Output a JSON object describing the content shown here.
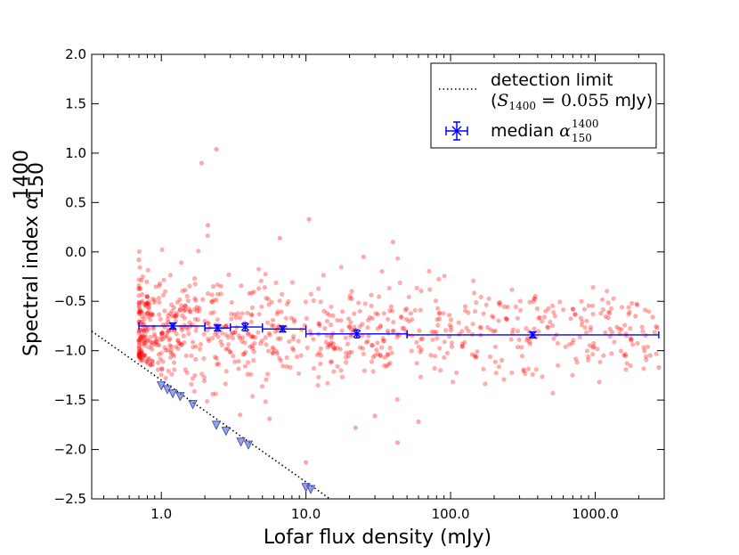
{
  "chart_data": {
    "type": "scatter",
    "xscale": "log",
    "xlabel": "Lofar flux density (mJy)",
    "ylabel": "Spectral index",
    "ylabel_symbol": "α",
    "ylabel_sup": "1400",
    "ylabel_sub": "150",
    "xlim": [
      0.33,
      3000
    ],
    "ylim": [
      -2.5,
      2.0
    ],
    "x_ticks": [
      1,
      10,
      100,
      1000
    ],
    "x_tick_labels": [
      "1.0",
      "10.0",
      "100.0",
      "1000.0"
    ],
    "y_ticks": [
      -2.5,
      -2.0,
      -1.5,
      -1.0,
      -0.5,
      0.0,
      0.5,
      1.0,
      1.5,
      2.0
    ],
    "y_tick_labels": [
      "−2.5",
      "−2.0",
      "−1.5",
      "−1.0",
      "−0.5",
      "0.0",
      "0.5",
      "1.0",
      "1.5",
      "2.0"
    ],
    "colors": {
      "points": "#ff0000",
      "median": "#0000ff",
      "limit": "#000000",
      "upper_limits": "#5566cc"
    },
    "legend": {
      "position": "top-right",
      "detection_label": "detection limit",
      "detection_formula_prefix": "(",
      "detection_formula_var": "S",
      "detection_formula_sub": "1400",
      "detection_formula_value": " = 0.055",
      "detection_formula_unit": " mJy)",
      "median_label": "median",
      "median_symbol": "α",
      "median_sup": "1400",
      "median_sub": "150"
    },
    "detection_limit_mJy": 0.055,
    "median_points": [
      {
        "x": 1.2,
        "y": -0.75,
        "x_lo": 0.7,
        "x_hi": 2.0,
        "yerr": 0.03
      },
      {
        "x": 2.45,
        "y": -0.77,
        "x_lo": 2.0,
        "x_hi": 3.0,
        "yerr": 0.03
      },
      {
        "x": 3.8,
        "y": -0.76,
        "x_lo": 3.0,
        "x_hi": 5.0,
        "yerr": 0.04
      },
      {
        "x": 6.9,
        "y": -0.78,
        "x_lo": 5.0,
        "x_hi": 10.0,
        "yerr": 0.03
      },
      {
        "x": 22.5,
        "y": -0.83,
        "x_lo": 10.0,
        "x_hi": 50.0,
        "yerr": 0.04
      },
      {
        "x": 370,
        "y": -0.84,
        "x_lo": 50.0,
        "x_hi": 2750,
        "yerr": 0.03
      }
    ],
    "upper_limits": [
      {
        "x": 1.0,
        "y": -1.35
      },
      {
        "x": 1.1,
        "y": -1.39
      },
      {
        "x": 1.2,
        "y": -1.43
      },
      {
        "x": 1.35,
        "y": -1.46
      },
      {
        "x": 1.65,
        "y": -1.54
      },
      {
        "x": 2.4,
        "y": -1.75
      },
      {
        "x": 2.8,
        "y": -1.81
      },
      {
        "x": 3.55,
        "y": -1.92
      },
      {
        "x": 4.0,
        "y": -1.95
      },
      {
        "x": 10.0,
        "y": -2.38
      },
      {
        "x": 10.8,
        "y": -2.4
      }
    ],
    "outliers": [
      {
        "x": 2.4,
        "y": 1.04
      },
      {
        "x": 1.9,
        "y": 0.9
      },
      {
        "x": 10.5,
        "y": 0.33
      },
      {
        "x": 2.1,
        "y": 0.27
      },
      {
        "x": 6.6,
        "y": 0.14
      },
      {
        "x": 0.7,
        "y": -0.08
      },
      {
        "x": 40.0,
        "y": 0.1
      },
      {
        "x": 25.0,
        "y": -0.05
      },
      {
        "x": 22.0,
        "y": -1.78
      },
      {
        "x": 43.0,
        "y": -1.93
      },
      {
        "x": 30.0,
        "y": -1.66
      },
      {
        "x": 60.0,
        "y": -1.72
      },
      {
        "x": 5.6,
        "y": -1.69
      },
      {
        "x": 3.5,
        "y": -1.65
      },
      {
        "x": 10.0,
        "y": -2.13
      },
      {
        "x": 2750,
        "y": -1.17
      },
      {
        "x": 2500,
        "y": -0.66
      },
      {
        "x": 1900,
        "y": -0.65
      }
    ],
    "cloud": {
      "count": 900,
      "x_range_mJy": [
        0.7,
        2700
      ],
      "center_alpha": -0.8,
      "spread": 0.25,
      "note": "dense cloud of individual source spectral indices, red, semi-transparent"
    }
  }
}
